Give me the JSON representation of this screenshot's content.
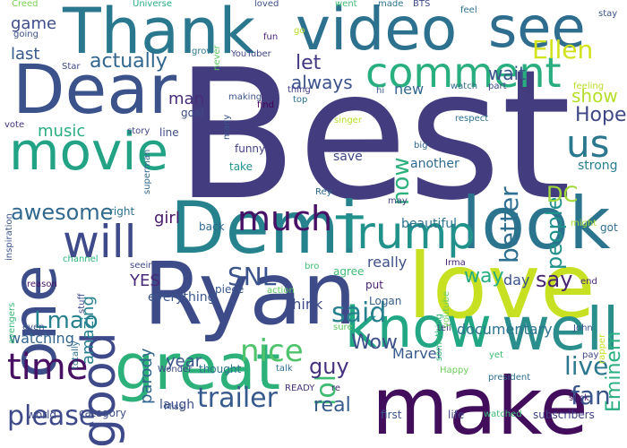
{
  "cloud": {
    "words": [
      {
        "text": "Best",
        "color": "#433d80"
      },
      {
        "text": "love",
        "color": "#c8e022"
      },
      {
        "text": "Ryan",
        "color": "#3d4b89"
      },
      {
        "text": "make",
        "color": "#420d5b"
      },
      {
        "text": "Demi",
        "color": "#26838e"
      },
      {
        "text": "great",
        "color": "#2db17b"
      },
      {
        "text": "Dear",
        "color": "#3b528b"
      },
      {
        "text": "Thank",
        "color": "#29788e"
      },
      {
        "text": "video",
        "color": "#2c728e"
      },
      {
        "text": "look",
        "color": "#2b748e"
      },
      {
        "text": "know",
        "color": "#22a785"
      },
      {
        "text": "well",
        "color": "#2a8f8c"
      },
      {
        "text": "one",
        "color": "#3d4d8a"
      },
      {
        "text": "movie",
        "color": "#22a386"
      },
      {
        "text": "see",
        "color": "#2e6d8e"
      },
      {
        "text": "comment",
        "color": "#29af7f"
      },
      {
        "text": "good",
        "color": "#3e4989"
      },
      {
        "text": "time",
        "color": "#471063"
      },
      {
        "text": "Trump",
        "color": "#21918c"
      },
      {
        "text": "will",
        "color": "#3e4a89"
      },
      {
        "text": "much",
        "color": "#471165"
      },
      {
        "text": "us",
        "color": "#2a788e"
      },
      {
        "text": "trailer",
        "color": "#375a8c"
      },
      {
        "text": "please",
        "color": "#3e4989"
      },
      {
        "text": "nice",
        "color": "#4ec36b"
      },
      {
        "text": "Ellen",
        "color": "#d2e21b"
      },
      {
        "text": "lol",
        "color": "#3fbc73"
      },
      {
        "text": "said",
        "color": "#27808e"
      },
      {
        "text": "SNL",
        "color": "#3b528b"
      },
      {
        "text": "live",
        "color": "#2a778e"
      },
      {
        "text": "better",
        "color": "#2e6e8e"
      },
      {
        "text": "fan",
        "color": "#3a548c"
      },
      {
        "text": "actually",
        "color": "#31668e"
      },
      {
        "text": "awesome",
        "color": "#31688e"
      },
      {
        "text": "Lmao",
        "color": "#26818e"
      },
      {
        "text": "people",
        "color": "#21918c"
      },
      {
        "text": "guy",
        "color": "#46327e"
      },
      {
        "text": "real",
        "color": "#375b8d"
      },
      {
        "text": "Wow",
        "color": "#3d4e8a"
      },
      {
        "text": "now",
        "color": "#2db27d"
      },
      {
        "text": "let",
        "color": "#453781"
      },
      {
        "text": "always",
        "color": "#3b528b"
      },
      {
        "text": "DC",
        "color": "#a0da39"
      },
      {
        "text": "Hope",
        "color": "#3f4788"
      },
      {
        "text": "show",
        "color": "#b5de2b"
      },
      {
        "text": "way",
        "color": "#27ad81"
      },
      {
        "text": "say",
        "color": "#482374"
      },
      {
        "text": "Eminem",
        "color": "#29af7f"
      },
      {
        "text": "wait",
        "color": "#3b528b"
      },
      {
        "text": "game",
        "color": "#3e4c8a"
      },
      {
        "text": "last",
        "color": "#38598c"
      },
      {
        "text": "man",
        "color": "#472c7a"
      },
      {
        "text": "music",
        "color": "#29af7f"
      },
      {
        "text": "amazing",
        "color": "#26828e"
      },
      {
        "text": "parody",
        "color": "#31668e"
      },
      {
        "text": "year",
        "color": "#3b528b"
      },
      {
        "text": "YES",
        "color": "#482979"
      },
      {
        "text": "girl",
        "color": "#481769"
      },
      {
        "text": "watching",
        "color": "#33638d"
      },
      {
        "text": "Marvel",
        "color": "#38588c"
      },
      {
        "text": "documentary",
        "color": "#2c728e"
      },
      {
        "text": "really",
        "color": "#3d4e8a"
      },
      {
        "text": "think",
        "color": "#3e4a89"
      },
      {
        "text": "day",
        "color": "#3b528b"
      },
      {
        "text": "new",
        "color": "#31678e"
      },
      {
        "text": "another",
        "color": "#2f6b8e"
      },
      {
        "text": "everything",
        "color": "#3a548c"
      },
      {
        "text": "laugh",
        "color": "#3e4c8a"
      },
      {
        "text": "beautiful",
        "color": "#2c718e"
      },
      {
        "text": "strong",
        "color": "#287d8e"
      },
      {
        "text": "save",
        "color": "#404688"
      },
      {
        "text": "funny",
        "color": "#424086"
      },
      {
        "text": "take",
        "color": "#21918c"
      },
      {
        "text": "goal",
        "color": "#3e4989"
      },
      {
        "text": "line",
        "color": "#3e4a89"
      },
      {
        "text": "story",
        "color": "#414487"
      },
      {
        "text": "back",
        "color": "#31668e"
      },
      {
        "text": "right",
        "color": "#2c728e"
      },
      {
        "text": "put",
        "color": "#481f70"
      },
      {
        "text": "piece",
        "color": "#39568c"
      },
      {
        "text": "agree",
        "color": "#3dbc74"
      },
      {
        "text": "Logan",
        "color": "#355f8d"
      },
      {
        "text": "thought",
        "color": "#2c738e"
      },
      {
        "text": "tell",
        "color": "#46327e"
      },
      {
        "text": "end",
        "color": "#482878"
      },
      {
        "text": "got",
        "color": "#2e6f8e"
      },
      {
        "text": "pay",
        "color": "#414487"
      },
      {
        "text": "John",
        "color": "#3b528b"
      },
      {
        "text": "life",
        "color": "#404588"
      },
      {
        "text": "first",
        "color": "#39568c"
      },
      {
        "text": "category",
        "color": "#3e4c8a"
      },
      {
        "text": "world",
        "color": "#3e4a89"
      },
      {
        "text": "subscribers",
        "color": "#423f85"
      },
      {
        "text": "watched",
        "color": "#3aba76"
      },
      {
        "text": "suck",
        "color": "#481f70"
      },
      {
        "text": "president",
        "color": "#2e6e8e"
      },
      {
        "text": "even",
        "color": "#3b528b"
      },
      {
        "text": "vote",
        "color": "#46327e"
      },
      {
        "text": "reason",
        "color": "#471365"
      },
      {
        "text": "stuff",
        "color": "#3e4a89"
      },
      {
        "text": "inspiration",
        "color": "#3b528b"
      },
      {
        "text": "channel",
        "color": "#2db27d"
      },
      {
        "text": "seeing",
        "color": "#3f4889"
      },
      {
        "text": "action",
        "color": "#5ec962"
      },
      {
        "text": "bro",
        "color": "#3fbc73"
      },
      {
        "text": "Irma",
        "color": "#482576"
      },
      {
        "text": "something",
        "color": "#35b779"
      },
      {
        "text": "youtube",
        "color": "#6ccd5a"
      },
      {
        "text": "singer",
        "color": "#b8de29"
      },
      {
        "text": "Rey",
        "color": "#2f6b8e"
      },
      {
        "text": "may",
        "color": "#424086"
      },
      {
        "text": "might",
        "color": "#aadc32"
      },
      {
        "text": "big",
        "color": "#31678e"
      },
      {
        "text": "respect",
        "color": "#2d708e"
      },
      {
        "text": "feeling",
        "color": "#bade28"
      },
      {
        "text": "hi",
        "color": "#39568c"
      },
      {
        "text": "part",
        "color": "#404688"
      },
      {
        "text": "watch",
        "color": "#2e6e8e"
      },
      {
        "text": "top",
        "color": "#2c738e"
      },
      {
        "text": "thing",
        "color": "#433e85"
      },
      {
        "text": "find",
        "color": "#440154"
      },
      {
        "text": "making",
        "color": "#3b528b"
      },
      {
        "text": "many",
        "color": "#39568c"
      },
      {
        "text": "superman",
        "color": "#31688e"
      },
      {
        "text": "YouTuber",
        "color": "#404688"
      },
      {
        "text": "grow",
        "color": "#2a778e"
      },
      {
        "text": "Universe",
        "color": "#26ad81"
      },
      {
        "text": "Star",
        "color": "#3e4a89"
      },
      {
        "text": "going",
        "color": "#3b528b"
      },
      {
        "text": "Creed",
        "color": "#7ad151"
      },
      {
        "text": "never",
        "color": "#5ec962"
      },
      {
        "text": "fun",
        "color": "#482576"
      },
      {
        "text": "loved",
        "color": "#3b528b"
      },
      {
        "text": "went",
        "color": "#3fbc73"
      },
      {
        "text": "made",
        "color": "#2c738e"
      },
      {
        "text": "BTS",
        "color": "#3e4a89"
      },
      {
        "text": "feel",
        "color": "#2e6f8e"
      },
      {
        "text": "stay",
        "color": "#3b528b"
      },
      {
        "text": "go",
        "color": "#bade28"
      },
      {
        "text": "Wonder",
        "color": "#3f4889"
      },
      {
        "text": "Miss",
        "color": "#3b528b"
      },
      {
        "text": "talk",
        "color": "#2e6f8e"
      },
      {
        "text": "READY",
        "color": "#46327e"
      },
      {
        "text": "re",
        "color": "#482878"
      },
      {
        "text": "yet",
        "color": "#3fbc73"
      },
      {
        "text": "Happy",
        "color": "#6ccd5a"
      },
      {
        "text": "totally",
        "color": "#2e6e8e"
      },
      {
        "text": "sure",
        "color": "#5ec962"
      },
      {
        "text": "rapper",
        "color": "#c8e020"
      },
      {
        "text": "avengers",
        "color": "#38b977"
      }
    ]
  }
}
